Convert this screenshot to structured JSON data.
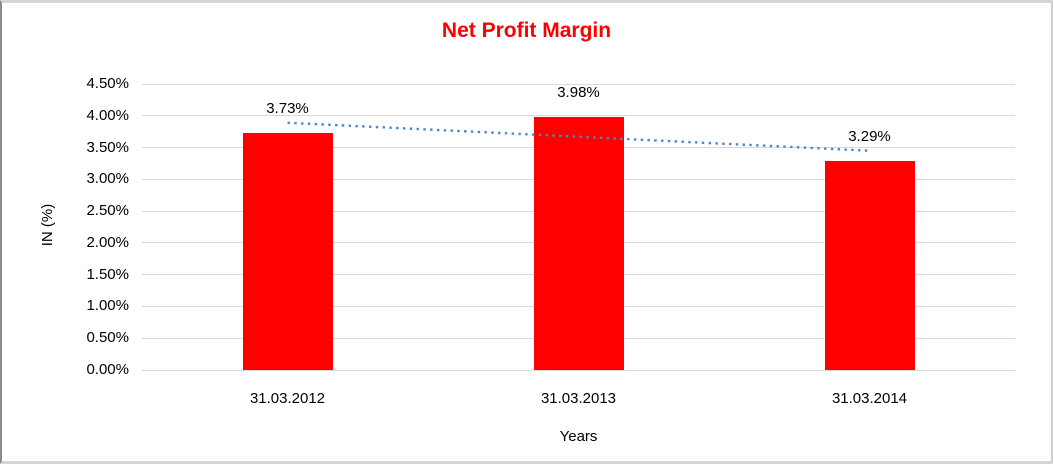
{
  "title": "Net Profit Margin",
  "chart_data": {
    "type": "bar",
    "title": "Net Profit Margin",
    "title_color": "#FF0000",
    "categories": [
      "31.03.2012",
      "31.03.2013",
      "31.03.2014"
    ],
    "values": [
      3.73,
      3.98,
      3.29
    ],
    "data_labels": [
      "3.73%",
      "3.98%",
      "3.29%"
    ],
    "xlabel": "Years",
    "ylabel": "IN (%)",
    "ylim": [
      0,
      4.5
    ],
    "ytick_step": 0.5,
    "ytick_labels": [
      "0.00%",
      "0.50%",
      "1.00%",
      "1.50%",
      "2.00%",
      "2.50%",
      "3.00%",
      "3.50%",
      "4.00%",
      "4.50%"
    ],
    "bar_color": "#FF0000",
    "gridline_color": "#D9D9D9",
    "grid": true,
    "legend": "none",
    "trendline": {
      "type": "linear",
      "line_style": "dotted",
      "color": "#4A86C8",
      "start_value": 3.89,
      "end_value": 3.45
    }
  }
}
